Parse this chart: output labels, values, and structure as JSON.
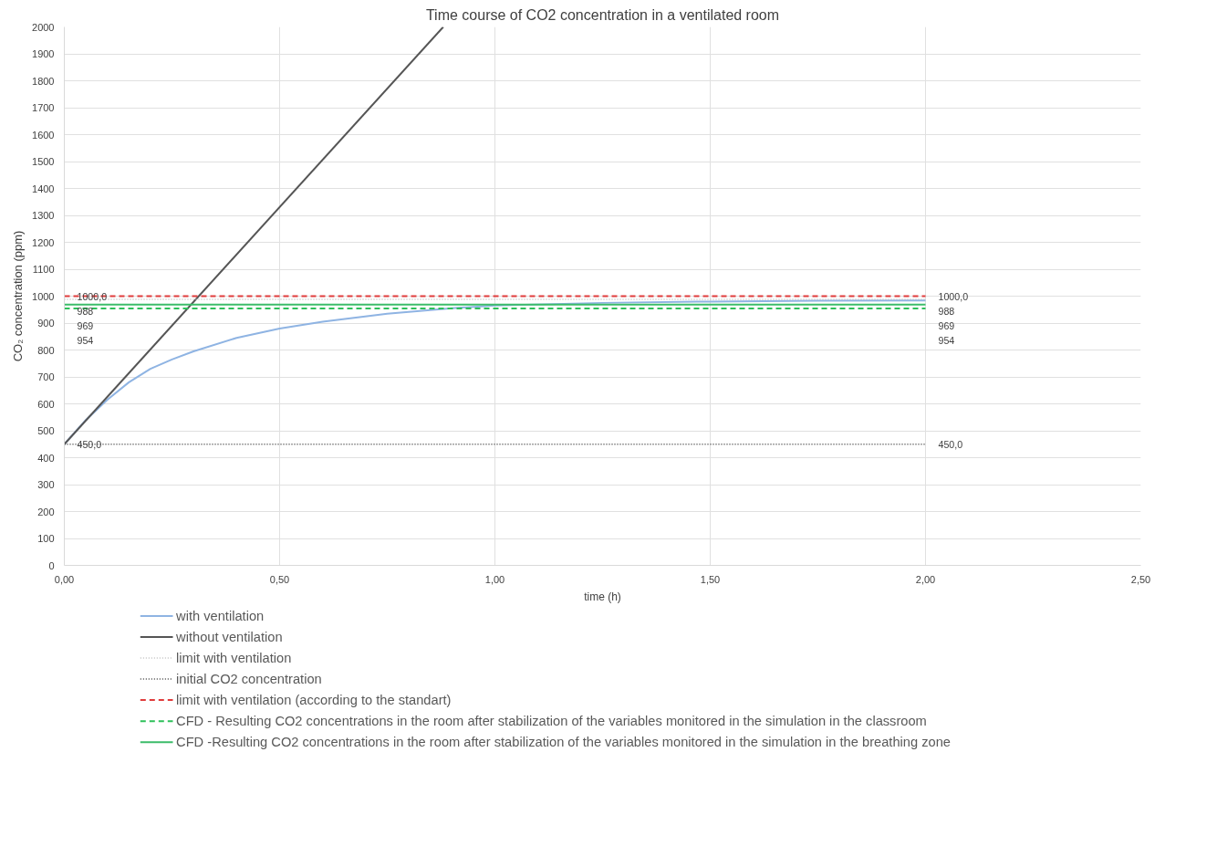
{
  "chart_data": {
    "type": "line",
    "title": "Time course of CO2 concentration in a ventilated room",
    "xlabel": "time (h)",
    "ylabel": "CO₂ concentration (ppm)",
    "xlim": [
      0,
      2.5
    ],
    "xticks": [
      {
        "value": 0,
        "label": "0,00"
      },
      {
        "value": 0.5,
        "label": "0,50"
      },
      {
        "value": 1,
        "label": "1,00"
      },
      {
        "value": 1.5,
        "label": "1,50"
      },
      {
        "value": 2,
        "label": "2,00"
      },
      {
        "value": 2.5,
        "label": "2,50"
      }
    ],
    "ylim": [
      0,
      2000
    ],
    "yticks": [
      0,
      100,
      200,
      300,
      400,
      500,
      600,
      700,
      800,
      900,
      1000,
      1100,
      1200,
      1300,
      1400,
      1500,
      1600,
      1700,
      1800,
      1900,
      2000
    ],
    "grid": true,
    "legend": "bottom",
    "marker": "none",
    "series": [
      {
        "name": "with ventilation",
        "color": "#8fb4e3",
        "line_style": "solid",
        "x": [
          0,
          0.05,
          0.1,
          0.15,
          0.2,
          0.25,
          0.3,
          0.4,
          0.5,
          0.6,
          0.75,
          0.9,
          1.0,
          1.25,
          1.5,
          1.75,
          2.0
        ],
        "values": [
          450,
          540,
          615,
          680,
          730,
          765,
          795,
          845,
          880,
          905,
          935,
          955,
          965,
          975,
          980,
          983,
          984
        ]
      },
      {
        "name": "without ventilation",
        "color": "#555555",
        "line_style": "solid",
        "x": [
          0,
          0.88
        ],
        "values": [
          450,
          2000
        ]
      },
      {
        "name": "limit with ventilation",
        "color": "#c0c0c0",
        "line_style": "dotted",
        "x": [
          0,
          2
        ],
        "values": [
          988,
          988
        ],
        "value_labels": [
          "988",
          "988"
        ]
      },
      {
        "name": "initial CO2 concentration",
        "color": "#444444",
        "line_style": "dotted",
        "x": [
          0,
          2
        ],
        "values": [
          450,
          450
        ],
        "value_labels": [
          "450,0",
          "450,0"
        ]
      },
      {
        "name": "limit with ventilation (according to the standart)",
        "color": "#e03c3c",
        "line_style": "dashed",
        "x": [
          0,
          2
        ],
        "values": [
          1000,
          1000
        ],
        "value_labels": [
          "1000,0",
          "1000,0"
        ]
      },
      {
        "name": "CFD - Resulting CO2 concentrations in the room after stabilization of the variables monitored in the simulation in the classroom",
        "color": "#2ec05a",
        "line_style": "dashed",
        "x": [
          0,
          2
        ],
        "values": [
          954,
          954
        ],
        "value_labels": [
          "954",
          "954"
        ]
      },
      {
        "name": "CFD -Resulting CO2 concentrations in the room after stabilization of the variables monitored in the simulation in the breathing zone",
        "color": "#3cbc6a",
        "line_style": "solid",
        "x": [
          0,
          2
        ],
        "values": [
          969,
          969
        ],
        "value_labels": [
          "969",
          "969"
        ]
      }
    ]
  }
}
